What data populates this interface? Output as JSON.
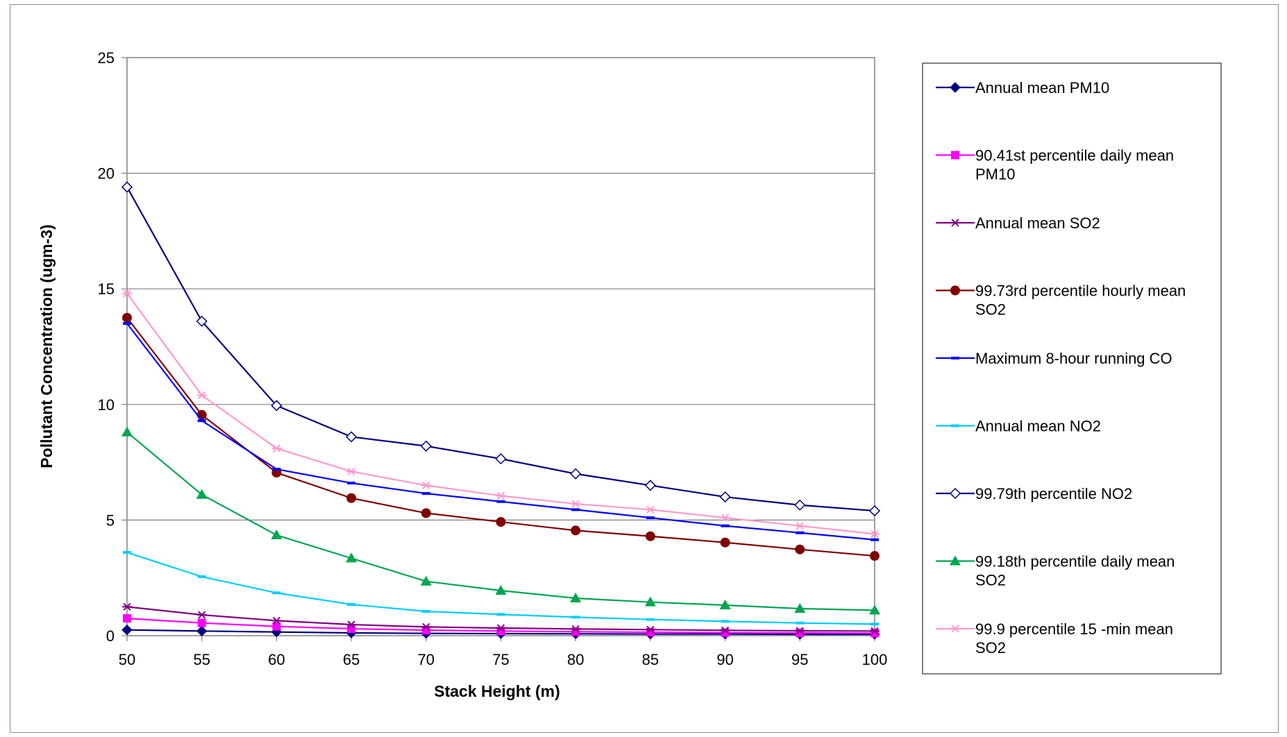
{
  "chart_data": {
    "type": "line",
    "title": "",
    "xlabel": "Stack Height (m)",
    "ylabel": "Pollutant Concentration (ugm-3)",
    "x": [
      50,
      55,
      60,
      65,
      70,
      75,
      80,
      85,
      90,
      95,
      100
    ],
    "xlim": [
      50,
      100
    ],
    "ylim": [
      0,
      25
    ],
    "yticks": [
      0,
      5,
      10,
      15,
      20,
      25
    ],
    "grid": "horizontal",
    "legend_position": "right",
    "series": [
      {
        "name": "Annual mean PM10",
        "color": "#000080",
        "marker": "diamond-filled",
        "values": [
          0.25,
          0.2,
          0.16,
          0.12,
          0.1,
          0.09,
          0.08,
          0.07,
          0.07,
          0.06,
          0.06
        ]
      },
      {
        "name": "90.41st percentile daily mean PM10",
        "color": "#ff00ff",
        "marker": "square-filled",
        "values": [
          0.75,
          0.55,
          0.4,
          0.3,
          0.24,
          0.2,
          0.17,
          0.15,
          0.13,
          0.12,
          0.11
        ]
      },
      {
        "name": "Annual mean SO2",
        "color": "#800080",
        "marker": "asterisk",
        "values": [
          1.25,
          0.9,
          0.65,
          0.48,
          0.38,
          0.33,
          0.29,
          0.26,
          0.23,
          0.21,
          0.2
        ]
      },
      {
        "name": "99.73rd percentile hourly mean SO2",
        "color": "#800000",
        "marker": "circle-filled",
        "values": [
          13.75,
          9.55,
          7.05,
          5.95,
          5.3,
          4.92,
          4.55,
          4.3,
          4.03,
          3.73,
          3.45
        ]
      },
      {
        "name": "Maximum 8-hour running CO",
        "color": "#0000ff",
        "marker": "dash",
        "values": [
          13.5,
          9.3,
          7.2,
          6.6,
          6.15,
          5.8,
          5.45,
          5.1,
          4.75,
          4.45,
          4.15
        ]
      },
      {
        "name": "Annual mean NO2",
        "color": "#00ccff",
        "marker": "dash",
        "values": [
          3.6,
          2.55,
          1.85,
          1.35,
          1.05,
          0.92,
          0.8,
          0.7,
          0.62,
          0.55,
          0.5
        ]
      },
      {
        "name": "99.79th percentile NO2",
        "color": "#000080",
        "marker": "diamond-open",
        "values": [
          19.4,
          13.6,
          9.95,
          8.6,
          8.2,
          7.65,
          7.0,
          6.5,
          6.0,
          5.65,
          5.4
        ]
      },
      {
        "name": "99.18th percentile daily mean SO2",
        "color": "#00a550",
        "marker": "triangle-filled",
        "values": [
          8.8,
          6.1,
          4.35,
          3.35,
          2.35,
          1.95,
          1.62,
          1.45,
          1.32,
          1.17,
          1.1
        ]
      },
      {
        "name": "99.9 percentile 15 -min mean SO2",
        "color": "#ff99cc",
        "marker": "asterisk",
        "values": [
          14.8,
          10.4,
          8.1,
          7.1,
          6.5,
          6.05,
          5.7,
          5.45,
          5.1,
          4.75,
          4.4
        ]
      }
    ],
    "legend_lines": [
      [
        "Annual mean PM10"
      ],
      [
        "90.41st percentile daily mean",
        "PM10"
      ],
      [
        "Annual mean SO2"
      ],
      [
        "99.73rd percentile hourly mean",
        "SO2"
      ],
      [
        "Maximum 8-hour running CO"
      ],
      [
        "Annual mean NO2"
      ],
      [
        "99.79th percentile NO2"
      ],
      [
        "99.18th percentile daily mean",
        "SO2"
      ],
      [
        "99.9 percentile 15 -min mean",
        "SO2"
      ]
    ]
  }
}
